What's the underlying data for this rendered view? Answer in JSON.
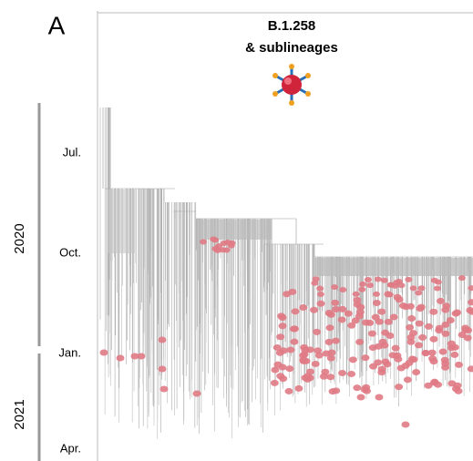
{
  "panel_label": "A",
  "title": {
    "line1": "B.1.258",
    "line2": "& sublineages"
  },
  "time_axis": {
    "months": [
      "Jul.",
      "Oct.",
      "Jan.",
      "Apr."
    ],
    "years": [
      "2020",
      "2021"
    ]
  }
}
